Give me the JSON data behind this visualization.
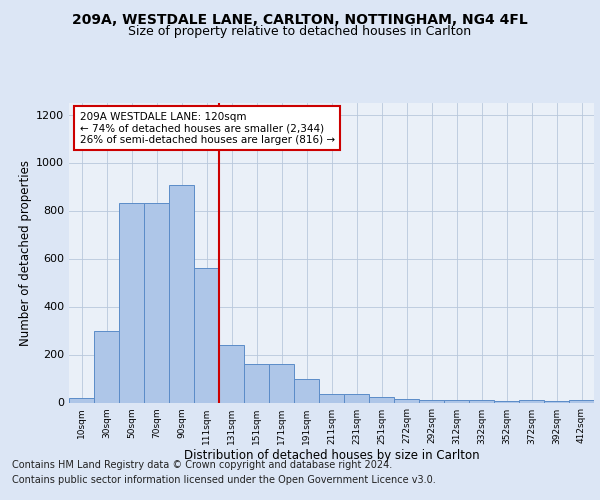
{
  "title1": "209A, WESTDALE LANE, CARLTON, NOTTINGHAM, NG4 4FL",
  "title2": "Size of property relative to detached houses in Carlton",
  "xlabel": "Distribution of detached houses by size in Carlton",
  "ylabel": "Number of detached properties",
  "categories": [
    "10sqm",
    "30sqm",
    "50sqm",
    "70sqm",
    "90sqm",
    "111sqm",
    "131sqm",
    "151sqm",
    "171sqm",
    "191sqm",
    "211sqm",
    "231sqm",
    "251sqm",
    "272sqm",
    "292sqm",
    "312sqm",
    "332sqm",
    "352sqm",
    "372sqm",
    "392sqm",
    "412sqm"
  ],
  "values": [
    20,
    300,
    830,
    830,
    905,
    560,
    238,
    162,
    162,
    100,
    35,
    35,
    22,
    15,
    10,
    10,
    12,
    5,
    10,
    5,
    10
  ],
  "bar_color": "#aec6e8",
  "bar_edge_color": "#5b8cc8",
  "vline_x_index": 5,
  "vline_color": "#cc0000",
  "annotation_text": "209A WESTDALE LANE: 120sqm\n← 74% of detached houses are smaller (2,344)\n26% of semi-detached houses are larger (816) →",
  "annotation_box_color": "#ffffff",
  "annotation_box_edge": "#cc0000",
  "ylim": [
    0,
    1250
  ],
  "yticks": [
    0,
    200,
    400,
    600,
    800,
    1000,
    1200
  ],
  "footer1": "Contains HM Land Registry data © Crown copyright and database right 2024.",
  "footer2": "Contains public sector information licensed under the Open Government Licence v3.0.",
  "bg_color": "#dce6f5",
  "plot_bg_color": "#eaf0f8",
  "title1_fontsize": 10,
  "title2_fontsize": 9,
  "xlabel_fontsize": 8.5,
  "ylabel_fontsize": 8.5,
  "footer_fontsize": 7
}
